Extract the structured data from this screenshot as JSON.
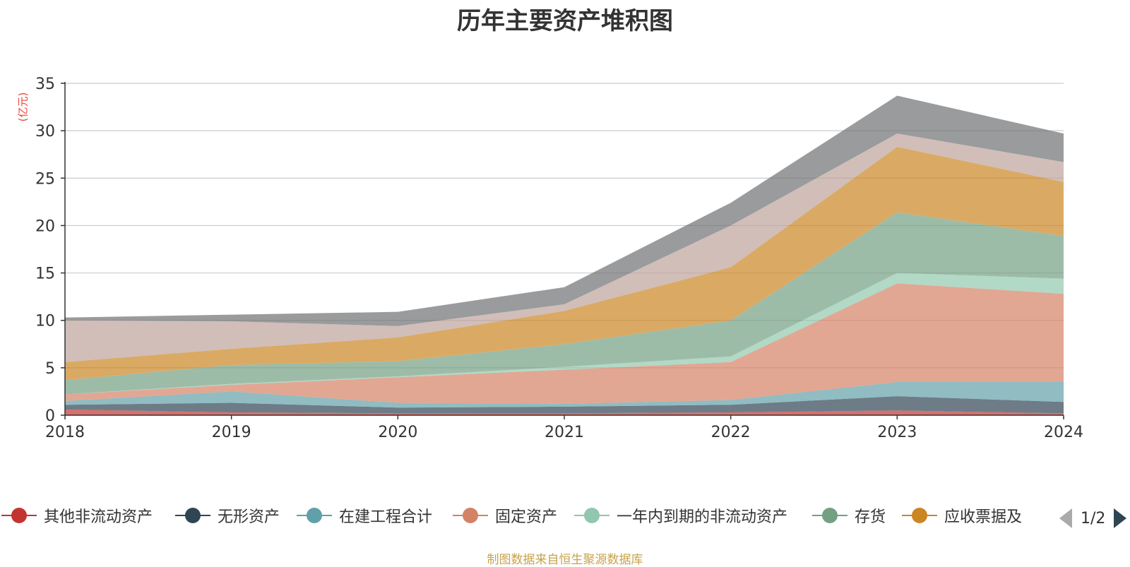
{
  "chart_data": {
    "type": "area",
    "stacked": true,
    "title": "历年主要资产堆积图",
    "ylabel": "(亿元)",
    "ylim": [
      0,
      35
    ],
    "yticks": [
      0,
      5,
      10,
      15,
      20,
      25,
      30,
      35
    ],
    "categories": [
      "2018",
      "2019",
      "2020",
      "2021",
      "2022",
      "2023",
      "2024"
    ],
    "grid": "horizontal",
    "legend_position": "bottom",
    "series": [
      {
        "name": "其他非流动资产",
        "color": "#c23531",
        "values": [
          0.6,
          0.3,
          0.2,
          0.2,
          0.3,
          0.5,
          0.2
        ]
      },
      {
        "name": "无形资产",
        "color": "#2f4554",
        "values": [
          0.5,
          1.0,
          0.6,
          0.7,
          0.8,
          1.5,
          1.2
        ]
      },
      {
        "name": "在建工程合计",
        "color": "#61a0a8",
        "values": [
          0.4,
          1.2,
          0.5,
          0.3,
          0.5,
          1.5,
          2.1
        ]
      },
      {
        "name": "固定资产",
        "color": "#d48265",
        "values": [
          0.7,
          0.7,
          2.7,
          3.6,
          4.0,
          10.4,
          9.3
        ]
      },
      {
        "name": "一年内到期的非流动资产",
        "color": "#91c7ae",
        "values": [
          0.0,
          0.1,
          0.1,
          0.3,
          0.6,
          1.1,
          1.6
        ]
      },
      {
        "name": "存货",
        "color": "#749f83",
        "values": [
          1.5,
          2.0,
          1.6,
          2.4,
          3.8,
          6.4,
          4.5
        ]
      },
      {
        "name": "应收票据及",
        "color": "#ca8622",
        "values": [
          1.9,
          1.7,
          2.5,
          3.5,
          5.6,
          6.9,
          5.7
        ]
      },
      {
        "name": "",
        "color": "#bda29a",
        "values": [
          4.4,
          2.9,
          1.2,
          0.7,
          4.4,
          1.4,
          2.1
        ]
      },
      {
        "name": "",
        "color": "#6e7074",
        "values": [
          0.3,
          0.7,
          1.5,
          1.8,
          2.4,
          4.0,
          3.0
        ]
      }
    ]
  },
  "legend": {
    "items": [
      {
        "label": "其他非流动资产",
        "color": "#c23531"
      },
      {
        "label": "无形资产",
        "color": "#2f4554"
      },
      {
        "label": "在建工程合计",
        "color": "#61a0a8"
      },
      {
        "label": "固定资产",
        "color": "#d48265"
      },
      {
        "label": "一年内到期的非流动资产",
        "color": "#91c7ae"
      },
      {
        "label": "存货",
        "color": "#749f83"
      },
      {
        "label": "应收票据及",
        "color": "#ca8622"
      }
    ],
    "page_indicator": "1/2"
  },
  "footer": {
    "source_note": "制图数据来自恒生聚源数据库"
  }
}
